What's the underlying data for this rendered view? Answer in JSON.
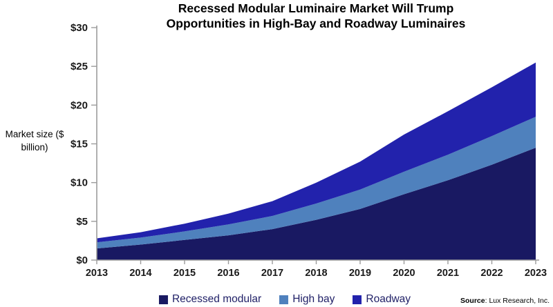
{
  "chart_data": {
    "type": "area",
    "stacked": true,
    "title": "Recessed Modular Luminaire Market Will Trump Opportunities in High-Bay and Roadway Luminaires",
    "ylabel": "Market size ($ billion)",
    "categories": [
      "2013",
      "2014",
      "2015",
      "2016",
      "2017",
      "2018",
      "2019",
      "2020",
      "2021",
      "2022",
      "2023"
    ],
    "series": [
      {
        "name": "Recessed modular",
        "color": "#191962",
        "values": [
          1.5,
          2.0,
          2.6,
          3.2,
          4.0,
          5.2,
          6.6,
          8.5,
          10.3,
          12.3,
          14.5
        ]
      },
      {
        "name": "High bay",
        "color": "#4f81bd",
        "values": [
          0.8,
          0.9,
          1.1,
          1.4,
          1.7,
          2.1,
          2.5,
          2.9,
          3.3,
          3.7,
          4.0
        ]
      },
      {
        "name": "Roadway",
        "color": "#2222ac",
        "values": [
          0.5,
          0.7,
          1.0,
          1.4,
          1.9,
          2.7,
          3.6,
          4.8,
          5.6,
          6.3,
          7.0
        ]
      }
    ],
    "ylim": [
      0,
      30
    ],
    "y_tick_labels": [
      "$0",
      "$5",
      "$10",
      "$15",
      "$20",
      "$25",
      "$30"
    ],
    "grid": false,
    "legend_position": "bottom",
    "axis_color": "#9b9b9b",
    "tick_label_color": "#1a1a1a",
    "legend_text_color": "#1f1f66"
  },
  "source": {
    "label": "Source",
    "text": ": Lux Research, Inc."
  }
}
